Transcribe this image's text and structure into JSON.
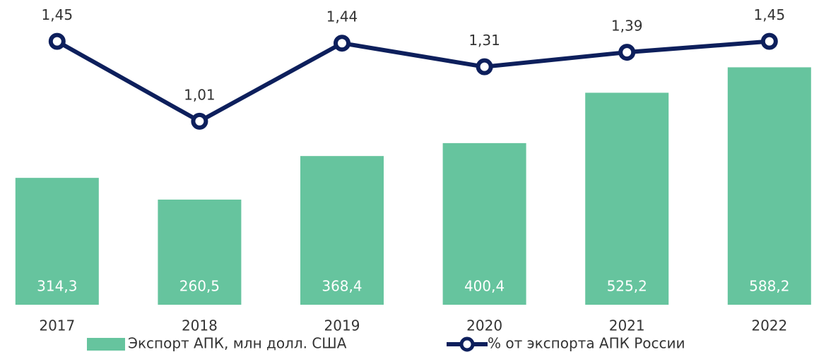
{
  "chart_data": {
    "type": "combo",
    "categories": [
      "2017",
      "2018",
      "2019",
      "2020",
      "2021",
      "2022"
    ],
    "series": [
      {
        "name": "Экспорт АПК, млн долл. США",
        "type": "bar",
        "color": "#66c49e",
        "values": [
          314.3,
          260.5,
          368.4,
          400.4,
          525.2,
          588.2
        ],
        "value_labels": [
          "314,3",
          "260,5",
          "368,4",
          "400,4",
          "525,2",
          "588,2"
        ]
      },
      {
        "name": "% от экспорта АПК России",
        "type": "line",
        "axis": "y2",
        "color": "#0d1f5c",
        "values": [
          1.45,
          1.01,
          1.44,
          1.31,
          1.39,
          1.45
        ],
        "value_labels": [
          "1,45",
          "1,01",
          "1,44",
          "1,31",
          "1,39",
          "1,45"
        ]
      }
    ],
    "ylim": [
      0,
      720
    ],
    "y2lim": [
      0,
      1.6
    ],
    "grid": false
  }
}
